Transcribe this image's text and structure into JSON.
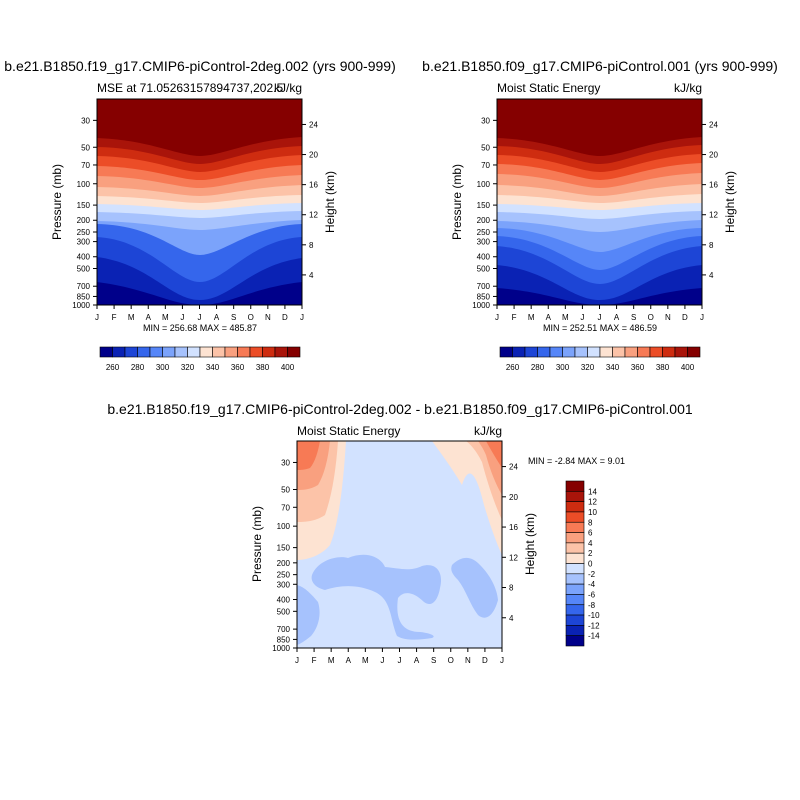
{
  "months": [
    "J",
    "F",
    "M",
    "A",
    "M",
    "J",
    "J",
    "A",
    "S",
    "O",
    "N",
    "D",
    "J"
  ],
  "pressure_ticks": [
    "30",
    "50",
    "70",
    "100",
    "150",
    "200",
    "250",
    "300",
    "400",
    "500",
    "700",
    "850",
    "1000"
  ],
  "height_ticks": [
    "24",
    "20",
    "16",
    "12",
    "8",
    "4"
  ],
  "pressure_label": "Pressure (mb)",
  "height_label": "Height (km)",
  "chart_data": [
    {
      "type": "contour",
      "title": "b.e21.B1850.f19_g17.CMIP6-piControl-2deg.002 (yrs 900-999)",
      "left_label": "MSE at 71.05263157894737,202.5",
      "right_label": "kJ/kg",
      "min_max": "MIN = 256.68 MAX = 485.87",
      "min": 256.68,
      "max": 485.87,
      "ylim": [
        1000,
        20
      ],
      "levels": [
        260,
        270,
        280,
        290,
        300,
        310,
        320,
        330,
        340,
        350,
        360,
        370,
        380,
        390,
        400
      ]
    },
    {
      "type": "contour",
      "title": "b.e21.B1850.f09_g17.CMIP6-piControl.001 (yrs 900-999)",
      "left_label": "Moist Static Energy",
      "right_label": "kJ/kg",
      "min_max": "MIN = 252.51 MAX = 486.59",
      "min": 252.51,
      "max": 486.59,
      "ylim": [
        1000,
        20
      ],
      "levels": [
        260,
        270,
        280,
        290,
        300,
        310,
        320,
        330,
        340,
        350,
        360,
        370,
        380,
        390,
        400
      ]
    },
    {
      "type": "contour",
      "title": "b.e21.B1850.f19_g17.CMIP6-piControl-2deg.002 - b.e21.B1850.f09_g17.CMIP6-piControl.001",
      "left_label": "Moist Static Energy",
      "right_label": "kJ/kg",
      "min_max": "MIN =  -2.84 MAX =   9.01",
      "min": -2.84,
      "max": 9.01,
      "ylim": [
        1000,
        20
      ],
      "levels": [
        -14,
        -12,
        -10,
        -8,
        -6,
        -4,
        -2,
        0,
        2,
        4,
        6,
        8,
        10,
        12,
        14
      ]
    }
  ],
  "colorbars": {
    "top": {
      "labels": [
        "260",
        "280",
        "300",
        "320",
        "340",
        "360",
        "380",
        "400"
      ],
      "colors": [
        "#00008a",
        "#0a22b4",
        "#1d45d6",
        "#3566ec",
        "#5686f8",
        "#7ba3fb",
        "#a6c2fd",
        "#d2e2ff",
        "#fde3d2",
        "#fcc3a8",
        "#f9a07f",
        "#f77a55",
        "#ec4d27",
        "#ce2c10",
        "#a9140a",
        "#850000"
      ]
    },
    "diff": {
      "labels": [
        "14",
        "12",
        "10",
        "8",
        "6",
        "4",
        "2",
        "0",
        "-2",
        "-4",
        "-6",
        "-8",
        "-10",
        "-12",
        "-14"
      ],
      "colors": [
        "#850000",
        "#a9140a",
        "#ce2c10",
        "#ec4d27",
        "#f77a55",
        "#f9a07f",
        "#fcc3a8",
        "#fde3d2",
        "#d2e2ff",
        "#a6c2fd",
        "#7ba3fb",
        "#5686f8",
        "#3566ec",
        "#1d45d6",
        "#0a22b4",
        "#00008a"
      ]
    }
  }
}
